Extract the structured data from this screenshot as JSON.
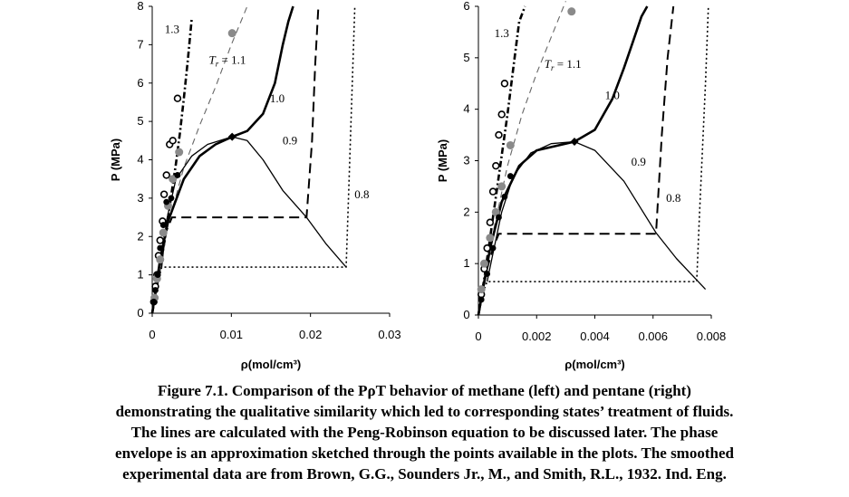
{
  "caption": {
    "lines": [
      "Figure 7.1. Comparison of the PρT behavior of methane (left) and pentane (right)",
      "demonstrating the qualitative similarity which led to corresponding states’ treatment of fluids.",
      "The lines are calculated with the Peng-Robinson equation to be discussed later. The phase",
      "envelope is an approximation sketched through the points available in the plots. The smoothed",
      "experimental data are from Brown, G.G., Sounders Jr., M., and Smith, R.L., 1932. Ind. Eng."
    ]
  },
  "chart_data": [
    {
      "type": "line",
      "xlabel": "ρ(mol/cm³)",
      "ylabel": "P (MPa)",
      "xlim": [
        0,
        0.03
      ],
      "ylim": [
        0,
        8
      ],
      "xticks": [
        "0",
        "0.01",
        "0.02",
        "0.03"
      ],
      "yticks": [
        "0",
        "1",
        "2",
        "3",
        "4",
        "5",
        "6",
        "7",
        "8"
      ],
      "critical_point": [
        0.0101,
        4.6
      ],
      "series": [
        {
          "name": "1.3",
          "style": "dash-dot-heavy",
          "x": [
            0,
            0.0005,
            0.001,
            0.0015,
            0.002,
            0.0025,
            0.003,
            0.0035,
            0.004,
            0.0045,
            0.005
          ],
          "y": [
            0,
            0.6,
            1.2,
            1.8,
            2.5,
            3.2,
            3.9,
            4.7,
            5.6,
            6.6,
            7.7
          ]
        },
        {
          "name": "T_r = 1.1",
          "style": "dash-thin-gray",
          "x": [
            0,
            0.002,
            0.004,
            0.006,
            0.008,
            0.01,
            0.012
          ],
          "y": [
            0,
            2.3,
            3.8,
            4.9,
            5.9,
            7.0,
            8.0
          ]
        },
        {
          "name": "1.0",
          "style": "solid-heavy",
          "x": [
            0,
            0.001,
            0.002,
            0.004,
            0.006,
            0.008,
            0.0101,
            0.012,
            0.014,
            0.0155,
            0.0165,
            0.0172,
            0.0178
          ],
          "y": [
            0,
            1.4,
            2.4,
            3.5,
            4.1,
            4.4,
            4.6,
            4.75,
            5.2,
            6.0,
            7.0,
            7.6,
            8.0
          ]
        },
        {
          "name": "0.9",
          "style": "dash-heavy",
          "x": [
            0,
            0.001,
            0.0015,
            0.0025,
            0.0195,
            0.0202,
            0.0206,
            0.021
          ],
          "y": [
            0,
            1.3,
            2.0,
            2.5,
            2.5,
            4.5,
            6.5,
            8.0
          ]
        },
        {
          "name": "0.8",
          "style": "dotted",
          "x": [
            0,
            0.0008,
            0.0012,
            0.0245,
            0.0248,
            0.0252,
            0.0256
          ],
          "y": [
            0,
            0.9,
            1.2,
            1.2,
            3.0,
            5.5,
            8.0
          ]
        },
        {
          "name": "",
          "style": "envelope-solid",
          "x": [
            0.0012,
            0.0018,
            0.003,
            0.005,
            0.007,
            0.0101,
            0.012,
            0.014,
            0.0165,
            0.0195,
            0.022,
            0.0245
          ],
          "y": [
            1.2,
            2.4,
            3.5,
            4.1,
            4.4,
            4.6,
            4.5,
            4.0,
            3.2,
            2.5,
            1.8,
            1.2
          ]
        }
      ],
      "points": [
        {
          "group": "open",
          "x": [
            0.0002,
            0.0004,
            0.0006,
            0.0008,
            0.001,
            0.0013,
            0.0015,
            0.0018,
            0.0022,
            0.0026,
            0.0032
          ],
          "y": [
            0.3,
            0.7,
            1.0,
            1.5,
            1.9,
            2.4,
            3.1,
            3.6,
            4.4,
            4.5,
            5.6
          ]
        },
        {
          "group": "gray",
          "x": [
            0.0003,
            0.0006,
            0.001,
            0.0014,
            0.002,
            0.0026,
            0.0034,
            0.0101
          ],
          "y": [
            0.4,
            0.9,
            1.4,
            2.1,
            2.8,
            3.5,
            4.2,
            7.3
          ]
        },
        {
          "group": "black",
          "x": [
            0.0002,
            0.0004,
            0.0007,
            0.001,
            0.0014,
            0.0018,
            0.0024,
            0.0032
          ],
          "y": [
            0.3,
            0.6,
            1.0,
            1.7,
            2.3,
            2.9,
            3.0,
            3.6
          ]
        }
      ],
      "annotations": [
        "1.3",
        "T_r = 1.1",
        "1.0",
        "0.9",
        "0.8"
      ]
    },
    {
      "type": "line",
      "xlabel": "ρ(mol/cm³)",
      "ylabel": "P (MPa)",
      "xlim": [
        0,
        0.008
      ],
      "ylim": [
        0,
        6
      ],
      "xticks": [
        "0",
        "0.002",
        "0.004",
        "0.006",
        "0.008"
      ],
      "yticks": [
        "0",
        "1",
        "2",
        "3",
        "4",
        "5",
        "6"
      ],
      "critical_point": [
        0.0033,
        3.37
      ],
      "series": [
        {
          "name": "1.3",
          "style": "dash-dot-heavy",
          "x": [
            0,
            0.0002,
            0.0004,
            0.0006,
            0.0008,
            0.001,
            0.0012,
            0.0014,
            0.0016
          ],
          "y": [
            0,
            0.7,
            1.5,
            2.3,
            3.1,
            3.9,
            4.8,
            5.7,
            6.0
          ]
        },
        {
          "name": "T_r = 1.1",
          "style": "dash-thin-gray",
          "x": [
            0,
            0.0005,
            0.001,
            0.0015,
            0.002,
            0.0025,
            0.003
          ],
          "y": [
            0,
            1.6,
            2.9,
            3.9,
            4.7,
            5.4,
            6.1
          ]
        },
        {
          "name": "1.0",
          "style": "solid-heavy",
          "x": [
            0,
            0.0004,
            0.0008,
            0.0014,
            0.002,
            0.0033,
            0.004,
            0.0046,
            0.005,
            0.0053,
            0.0056,
            0.0058
          ],
          "y": [
            0,
            1.3,
            2.2,
            2.9,
            3.2,
            3.37,
            3.6,
            4.2,
            4.8,
            5.3,
            5.8,
            6.0
          ]
        },
        {
          "name": "0.9",
          "style": "dash-heavy",
          "x": [
            0,
            0.0003,
            0.0005,
            0.0007,
            0.0061,
            0.0063,
            0.0065,
            0.0067
          ],
          "y": [
            0,
            0.9,
            1.3,
            1.58,
            1.58,
            3.5,
            5.0,
            6.0
          ]
        },
        {
          "name": "0.8",
          "style": "dotted",
          "x": [
            0,
            0.0002,
            0.0003,
            0.0075,
            0.0076,
            0.0078,
            0.0079
          ],
          "y": [
            0,
            0.5,
            0.65,
            0.65,
            2.0,
            4.5,
            6.0
          ]
        },
        {
          "name": "",
          "style": "envelope-solid",
          "x": [
            0.0003,
            0.0005,
            0.0008,
            0.0012,
            0.0018,
            0.0025,
            0.0033,
            0.004,
            0.005,
            0.0061,
            0.0068,
            0.0078
          ],
          "y": [
            0.65,
            1.2,
            2.0,
            2.7,
            3.15,
            3.33,
            3.37,
            3.2,
            2.6,
            1.6,
            1.1,
            0.5
          ]
        }
      ],
      "points": [
        {
          "group": "open",
          "x": [
            0.0001,
            0.0002,
            0.0003,
            0.0004,
            0.0005,
            0.0006,
            0.0007,
            0.0008,
            0.0009
          ],
          "y": [
            0.4,
            0.9,
            1.3,
            1.8,
            2.4,
            2.9,
            3.5,
            3.9,
            4.5
          ]
        },
        {
          "group": "gray",
          "x": [
            0.0001,
            0.0002,
            0.0004,
            0.0006,
            0.0008,
            0.0011,
            0.0032
          ],
          "y": [
            0.5,
            1.0,
            1.5,
            2.0,
            2.5,
            3.3,
            5.9
          ]
        },
        {
          "group": "black",
          "x": [
            0.0001,
            0.0003,
            0.0005,
            0.0007,
            0.0009,
            0.0011
          ],
          "y": [
            0.3,
            0.8,
            1.3,
            1.9,
            2.3,
            2.7
          ]
        }
      ],
      "annotations": [
        "1.3",
        "T_r = 1.1",
        "1.0",
        "0.9",
        "0.8"
      ]
    }
  ]
}
